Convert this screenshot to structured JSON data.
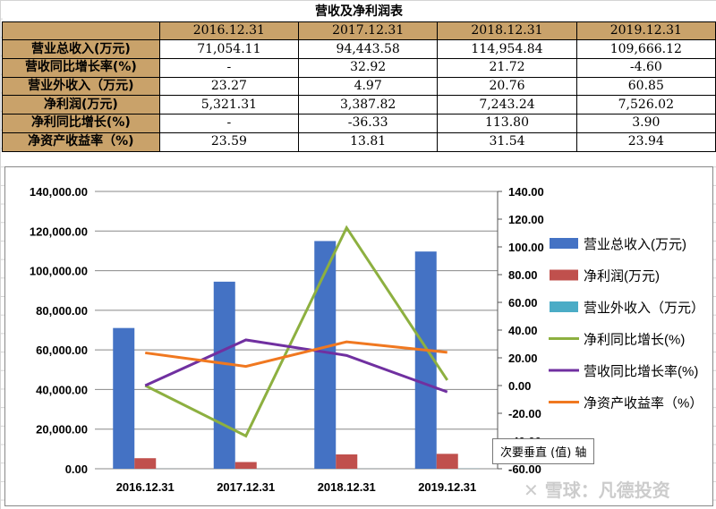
{
  "table": {
    "title": "营收及净利润表",
    "headers": [
      "2016.12.31",
      "2017.12.31",
      "2018.12.31",
      "2019.12.31"
    ],
    "rows": [
      {
        "label": "营业总收入(万元)",
        "values": [
          "71,054.11",
          "94,443.58",
          "114,954.84",
          "109,666.12"
        ]
      },
      {
        "label": "营收同比增长率(%)",
        "values": [
          "-",
          "32.92",
          "21.72",
          "-4.60"
        ]
      },
      {
        "label": "营业外收入（万元)",
        "values": [
          "23.27",
          "4.97",
          "20.76",
          "60.85"
        ]
      },
      {
        "label": "净利润(万元)",
        "values": [
          "5,321.31",
          "3,387.82",
          "7,243.24",
          "7,526.02"
        ]
      },
      {
        "label": "净利同比增长(%)",
        "values": [
          "-",
          "-36.33",
          "113.80",
          "3.90"
        ]
      },
      {
        "label": "净资产收益率（%)",
        "values": [
          "23.59",
          "13.81",
          "31.54",
          "23.94"
        ]
      }
    ]
  },
  "chart_data": {
    "type": "bar+line",
    "categories": [
      "2016.12.31",
      "2017.12.31",
      "2018.12.31",
      "2019.12.31"
    ],
    "primary_axis": {
      "ylim": [
        0,
        140000
      ],
      "ticks": [
        "0.00",
        "20,000.00",
        "40,000.00",
        "60,000.00",
        "80,000.00",
        "100,000.00",
        "120,000.00",
        "140,000.00"
      ]
    },
    "secondary_axis": {
      "ylim": [
        -60,
        140
      ],
      "ticks": [
        "-60.00",
        "-40.00",
        "-20.00",
        "0.00",
        "20.00",
        "40.00",
        "60.00",
        "80.00",
        "100.00",
        "120.00",
        "140.00"
      ]
    },
    "bar_series": [
      {
        "name": "营业总收入(万元)",
        "color": "#4472c4",
        "values": [
          71054.11,
          94443.58,
          114954.84,
          109666.12
        ]
      },
      {
        "name": "净利润(万元)",
        "color": "#c0504d",
        "values": [
          5321.31,
          3387.82,
          7243.24,
          7526.02
        ]
      },
      {
        "name": "营业外收入（万元）",
        "color": "#4bacc6",
        "values": [
          23.27,
          4.97,
          20.76,
          60.85
        ]
      }
    ],
    "line_series": [
      {
        "name": "净利同比增长(%)",
        "color": "#8db040",
        "values": [
          0,
          -36.33,
          113.8,
          3.9
        ]
      },
      {
        "name": "营收同比增长率(%)",
        "color": "#7030a0",
        "values": [
          0,
          32.92,
          21.72,
          -4.6
        ]
      },
      {
        "name": "净资产收益率（%）",
        "color": "#f07820",
        "values": [
          23.59,
          13.81,
          31.54,
          23.94
        ]
      }
    ],
    "legend": "right",
    "tooltip": "次要垂直 (值) 轴"
  },
  "watermark": "雪球：凡德投资"
}
